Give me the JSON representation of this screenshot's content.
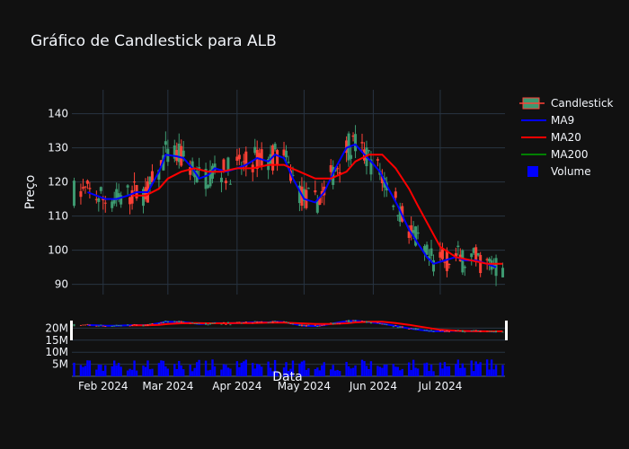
{
  "chart_data": {
    "type": "candlestick",
    "title": "Gráfico de Candlestick para ALB",
    "xlabel": "Data",
    "ylabel": "Preço",
    "x_tick_labels": [
      "Feb 2024",
      "Mar 2024",
      "Apr 2024",
      "May 2024",
      "Jun 2024",
      "Jul 2024"
    ],
    "x_tick_dates": [
      "2024-02-01",
      "2024-03-01",
      "2024-04-01",
      "2024-05-01",
      "2024-06-01",
      "2024-07-01"
    ],
    "x_range": [
      "2024-01-18",
      "2024-07-30"
    ],
    "price_ylim": [
      87,
      147
    ],
    "price_ticks": [
      90,
      100,
      110,
      120,
      130,
      140
    ],
    "price_tick_labels": [
      "90",
      "100",
      "110",
      "120",
      "130",
      "140"
    ],
    "volume_ylim": [
      0,
      25000000
    ],
    "volume_ticks": [
      5000000,
      10000000,
      15000000,
      20000000
    ],
    "volume_tick_labels": [
      "5M",
      "10M",
      "15M",
      "20M"
    ],
    "grid": true,
    "legend_position": "top-right",
    "legend": [
      {
        "key": "candle",
        "label": "Candlestick"
      },
      {
        "key": "ma9",
        "label": "MA9"
      },
      {
        "key": "ma20",
        "label": "MA20"
      },
      {
        "key": "ma200",
        "label": "MA200"
      },
      {
        "key": "volume",
        "label": "Volume"
      }
    ],
    "colors": {
      "up": "#3d9970",
      "down": "#ff4136",
      "ma9": "#0000ff",
      "ma20": "#ff0000",
      "ma200": "#008000",
      "volume": "#0000ff",
      "grid": "#283442",
      "text": "#f2f5fa",
      "background": "#111111"
    },
    "series_ma9": [
      [
        "2024-01-25",
        117
      ],
      [
        "2024-01-29",
        116
      ],
      [
        "2024-02-02",
        115
      ],
      [
        "2024-02-07",
        115
      ],
      [
        "2024-02-12",
        116
      ],
      [
        "2024-02-16",
        117
      ],
      [
        "2024-02-21",
        117
      ],
      [
        "2024-02-26",
        123
      ],
      [
        "2024-02-29",
        128
      ],
      [
        "2024-03-05",
        127.5
      ],
      [
        "2024-03-08",
        127
      ],
      [
        "2024-03-12",
        124
      ],
      [
        "2024-03-15",
        121
      ],
      [
        "2024-03-19",
        122
      ],
      [
        "2024-03-22",
        124
      ],
      [
        "2024-03-27",
        123
      ],
      [
        "2024-04-01",
        124
      ],
      [
        "2024-04-05",
        125
      ],
      [
        "2024-04-10",
        127
      ],
      [
        "2024-04-15",
        126
      ],
      [
        "2024-04-18",
        128
      ],
      [
        "2024-04-22",
        127
      ],
      [
        "2024-04-26",
        121
      ],
      [
        "2024-05-01",
        115
      ],
      [
        "2024-05-06",
        114
      ],
      [
        "2024-05-10",
        117
      ],
      [
        "2024-05-15",
        124
      ],
      [
        "2024-05-20",
        130
      ],
      [
        "2024-05-24",
        131
      ],
      [
        "2024-05-28",
        128
      ],
      [
        "2024-05-31",
        126
      ],
      [
        "2024-06-04",
        123
      ],
      [
        "2024-06-07",
        119
      ],
      [
        "2024-06-12",
        113
      ],
      [
        "2024-06-17",
        106
      ],
      [
        "2024-06-21",
        102
      ],
      [
        "2024-06-25",
        98
      ],
      [
        "2024-06-28",
        96
      ],
      [
        "2024-07-03",
        97
      ],
      [
        "2024-07-08",
        98
      ],
      [
        "2024-07-12",
        97
      ],
      [
        "2024-07-17",
        97
      ],
      [
        "2024-07-22",
        96
      ],
      [
        "2024-07-26",
        95
      ]
    ],
    "series_ma20": [
      [
        "2024-02-14",
        116
      ],
      [
        "2024-02-20",
        116
      ],
      [
        "2024-02-26",
        118
      ],
      [
        "2024-03-01",
        121
      ],
      [
        "2024-03-07",
        123
      ],
      [
        "2024-03-13",
        124
      ],
      [
        "2024-03-19",
        123
      ],
      [
        "2024-03-25",
        123
      ],
      [
        "2024-04-01",
        124
      ],
      [
        "2024-04-08",
        124
      ],
      [
        "2024-04-15",
        125
      ],
      [
        "2024-04-22",
        125
      ],
      [
        "2024-04-29",
        123
      ],
      [
        "2024-05-06",
        121
      ],
      [
        "2024-05-13",
        121
      ],
      [
        "2024-05-20",
        123
      ],
      [
        "2024-05-24",
        126
      ],
      [
        "2024-05-30",
        128
      ],
      [
        "2024-06-05",
        128
      ],
      [
        "2024-06-11",
        124
      ],
      [
        "2024-06-17",
        118
      ],
      [
        "2024-06-21",
        113
      ],
      [
        "2024-06-26",
        107
      ],
      [
        "2024-07-01",
        101
      ],
      [
        "2024-07-08",
        98
      ],
      [
        "2024-07-15",
        97
      ],
      [
        "2024-07-22",
        96
      ],
      [
        "2024-07-29",
        96
      ]
    ],
    "series_ma200": [],
    "series_volume_in_legend": true
  }
}
